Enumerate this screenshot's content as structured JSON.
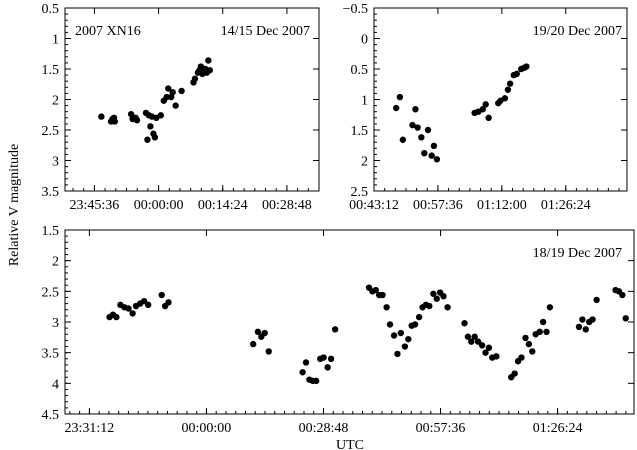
{
  "figure": {
    "ylabel": "Relative V magnitude",
    "xlabel": "UTC"
  },
  "chart_data": [
    {
      "type": "scatter",
      "panel": "top-left",
      "annotations": [
        "2007 XN16",
        "14/15 Dec 2007"
      ],
      "x_ticks": [
        "23:45:36",
        "00:00:00",
        "00:14:24",
        "00:28:48"
      ],
      "xlim_seconds": [
        -1260,
        2160
      ],
      "ylim": [
        3.5,
        0.5
      ],
      "y_ticks": [
        "0.5",
        "1",
        "1.5",
        "2",
        "2.5",
        "3",
        "3.5"
      ],
      "y_tick_values": [
        0.5,
        1,
        1.5,
        2,
        2.5,
        3,
        3.5
      ],
      "y_inverted": true,
      "grid": false,
      "legend": "none",
      "points": [
        [
          -770,
          2.28
        ],
        [
          -640,
          2.36
        ],
        [
          -620,
          2.32
        ],
        [
          -600,
          2.3
        ],
        [
          -590,
          2.36
        ],
        [
          -370,
          2.24
        ],
        [
          -350,
          2.32
        ],
        [
          -310,
          2.3
        ],
        [
          -290,
          2.34
        ],
        [
          -170,
          2.22
        ],
        [
          -150,
          2.66
        ],
        [
          -130,
          2.26
        ],
        [
          -110,
          2.44
        ],
        [
          -90,
          2.28
        ],
        [
          -70,
          2.56
        ],
        [
          -50,
          2.62
        ],
        [
          -30,
          2.3
        ],
        [
          30,
          2.26
        ],
        [
          70,
          2.02
        ],
        [
          110,
          1.96
        ],
        [
          130,
          1.82
        ],
        [
          170,
          1.96
        ],
        [
          190,
          1.88
        ],
        [
          230,
          2.1
        ],
        [
          310,
          1.86
        ],
        [
          470,
          1.72
        ],
        [
          490,
          1.66
        ],
        [
          530,
          1.56
        ],
        [
          550,
          1.52
        ],
        [
          570,
          1.46
        ],
        [
          590,
          1.58
        ],
        [
          610,
          1.52
        ],
        [
          630,
          1.5
        ],
        [
          650,
          1.56
        ],
        [
          670,
          1.36
        ],
        [
          690,
          1.52
        ]
      ]
    },
    {
      "type": "scatter",
      "panel": "top-right",
      "annotations": [
        "19/20 Dec 2007"
      ],
      "x_ticks": [
        "00:43:12",
        "00:57:36",
        "01:12:00",
        "01:26:24"
      ],
      "xlim_seconds": [
        2592,
        6012
      ],
      "ylim": [
        2.5,
        -0.5
      ],
      "y_ticks": [
        "−0.5",
        "0",
        "0.5",
        "1",
        "1.5",
        "2",
        "2.5"
      ],
      "y_tick_values": [
        -0.5,
        0,
        0.5,
        1,
        1.5,
        2,
        2.5
      ],
      "y_inverted": true,
      "grid": false,
      "legend": "none",
      "points": [
        [
          2892,
          1.14
        ],
        [
          2942,
          0.96
        ],
        [
          2982,
          1.66
        ],
        [
          3112,
          1.42
        ],
        [
          3152,
          1.16
        ],
        [
          3182,
          1.46
        ],
        [
          3232,
          1.62
        ],
        [
          3272,
          1.88
        ],
        [
          3322,
          1.5
        ],
        [
          3372,
          1.92
        ],
        [
          3402,
          1.76
        ],
        [
          3442,
          1.98
        ],
        [
          3952,
          1.22
        ],
        [
          4002,
          1.2
        ],
        [
          4062,
          1.16
        ],
        [
          4102,
          1.08
        ],
        [
          4142,
          1.3
        ],
        [
          4272,
          1.06
        ],
        [
          4302,
          1.02
        ],
        [
          4362,
          0.98
        ],
        [
          4402,
          0.84
        ],
        [
          4432,
          0.74
        ],
        [
          4482,
          0.6
        ],
        [
          4522,
          0.58
        ],
        [
          4582,
          0.5
        ],
        [
          4622,
          0.48
        ],
        [
          4652,
          0.46
        ]
      ]
    },
    {
      "type": "scatter",
      "panel": "bottom",
      "annotations": [
        "18/19 Dec 2007"
      ],
      "x_ticks": [
        "23:31:12",
        "00:00:00",
        "00:28:48",
        "00:57:36",
        "01:26:24"
      ],
      "xlim_seconds": [
        -2088,
        6312
      ],
      "ylim": [
        4.5,
        1.5
      ],
      "y_ticks": [
        "1.5",
        "2",
        "2.5",
        "3",
        "3.5",
        "4",
        "4.5"
      ],
      "y_tick_values": [
        1.5,
        2,
        2.5,
        3,
        3.5,
        4,
        4.5
      ],
      "y_inverted": true,
      "grid": false,
      "legend": "none",
      "points": [
        [
          -1430,
          2.92
        ],
        [
          -1380,
          2.88
        ],
        [
          -1330,
          2.92
        ],
        [
          -1270,
          2.72
        ],
        [
          -1210,
          2.76
        ],
        [
          -1150,
          2.78
        ],
        [
          -1090,
          2.86
        ],
        [
          -1040,
          2.74
        ],
        [
          -980,
          2.7
        ],
        [
          -920,
          2.66
        ],
        [
          -860,
          2.72
        ],
        [
          -660,
          2.56
        ],
        [
          -610,
          2.74
        ],
        [
          -560,
          2.68
        ],
        [
          690,
          3.36
        ],
        [
          760,
          3.16
        ],
        [
          810,
          3.24
        ],
        [
          860,
          3.18
        ],
        [
          920,
          3.48
        ],
        [
          1420,
          3.82
        ],
        [
          1470,
          3.66
        ],
        [
          1520,
          3.94
        ],
        [
          1570,
          3.96
        ],
        [
          1620,
          3.96
        ],
        [
          1680,
          3.6
        ],
        [
          1730,
          3.58
        ],
        [
          1790,
          3.74
        ],
        [
          1840,
          3.6
        ],
        [
          1900,
          3.12
        ],
        [
          2400,
          2.44
        ],
        [
          2450,
          2.5
        ],
        [
          2500,
          2.48
        ],
        [
          2550,
          2.56
        ],
        [
          2600,
          2.56
        ],
        [
          2660,
          2.76
        ],
        [
          2710,
          3.04
        ],
        [
          2770,
          3.22
        ],
        [
          2820,
          3.52
        ],
        [
          2870,
          3.18
        ],
        [
          2930,
          3.4
        ],
        [
          2980,
          3.28
        ],
        [
          3030,
          3.06
        ],
        [
          3080,
          3.04
        ],
        [
          3140,
          2.92
        ],
        [
          3190,
          2.76
        ],
        [
          3240,
          2.72
        ],
        [
          3290,
          2.74
        ],
        [
          3350,
          2.54
        ],
        [
          3400,
          2.62
        ],
        [
          3450,
          2.52
        ],
        [
          3500,
          2.58
        ],
        [
          3560,
          2.76
        ],
        [
          3810,
          3.02
        ],
        [
          3860,
          3.24
        ],
        [
          3910,
          3.32
        ],
        [
          3960,
          3.24
        ],
        [
          4010,
          3.32
        ],
        [
          4070,
          3.38
        ],
        [
          4120,
          3.5
        ],
        [
          4170,
          3.42
        ],
        [
          4220,
          3.58
        ],
        [
          4280,
          3.56
        ],
        [
          4500,
          3.9
        ],
        [
          4550,
          3.84
        ],
        [
          4600,
          3.64
        ],
        [
          4650,
          3.58
        ],
        [
          4710,
          3.26
        ],
        [
          4760,
          3.36
        ],
        [
          4810,
          3.48
        ],
        [
          4860,
          3.2
        ],
        [
          4920,
          3.16
        ],
        [
          4970,
          3.0
        ],
        [
          5020,
          3.16
        ],
        [
          5070,
          2.76
        ],
        [
          5500,
          3.08
        ],
        [
          5550,
          2.96
        ],
        [
          5600,
          3.12
        ],
        [
          5650,
          3.0
        ],
        [
          5700,
          2.96
        ],
        [
          5760,
          2.64
        ],
        [
          6040,
          2.48
        ],
        [
          6090,
          2.5
        ],
        [
          6140,
          2.56
        ],
        [
          6190,
          2.94
        ]
      ]
    }
  ]
}
